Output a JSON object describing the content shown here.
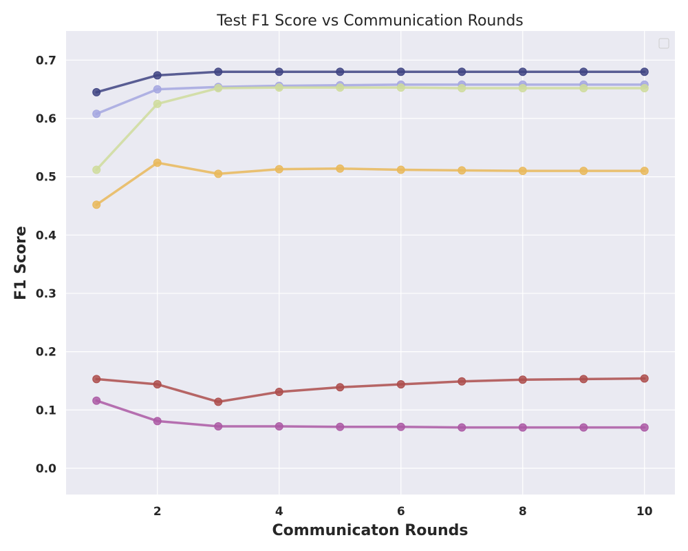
{
  "chart_data": {
    "type": "line",
    "title": "Test F1 Score vs Communication Rounds",
    "xlabel": "Communicaton Rounds",
    "ylabel": "F1 Score",
    "xlim": [
      0.5,
      10.5
    ],
    "ylim": [
      -0.045,
      0.75
    ],
    "xticks": [
      "2",
      "4",
      "6",
      "8",
      "10"
    ],
    "yticks": [
      "0.0",
      "0.1",
      "0.2",
      "0.3",
      "0.4",
      "0.5",
      "0.6",
      "0.7"
    ],
    "grid": true,
    "legend": "top-right (empty)",
    "x": [
      1,
      2,
      3,
      4,
      5,
      6,
      7,
      8,
      9,
      10
    ],
    "series": [
      {
        "color": "#3f4483",
        "values": [
          0.645,
          0.674,
          0.68,
          0.68,
          0.68,
          0.68,
          0.68,
          0.68,
          0.68,
          0.68
        ]
      },
      {
        "color": "#a5a7e0",
        "values": [
          0.608,
          0.65,
          0.654,
          0.656,
          0.657,
          0.658,
          0.658,
          0.658,
          0.658,
          0.658
        ]
      },
      {
        "color": "#cfdc9c",
        "values": [
          0.512,
          0.625,
          0.652,
          0.653,
          0.653,
          0.653,
          0.652,
          0.652,
          0.652,
          0.652
        ]
      },
      {
        "color": "#e9b95b",
        "values": [
          0.452,
          0.524,
          0.505,
          0.513,
          0.514,
          0.512,
          0.511,
          0.51,
          0.51,
          0.51
        ]
      },
      {
        "color": "#ad4d4c",
        "values": [
          0.153,
          0.144,
          0.114,
          0.131,
          0.139,
          0.144,
          0.149,
          0.152,
          0.153,
          0.154
        ]
      },
      {
        "color": "#ab59a4",
        "values": [
          0.116,
          0.081,
          0.072,
          0.072,
          0.071,
          0.071,
          0.07,
          0.07,
          0.07,
          0.07
        ]
      }
    ]
  },
  "colors": {
    "plot_background": "#eaeaf2",
    "grid": "#ffffff",
    "text": "#262626"
  }
}
